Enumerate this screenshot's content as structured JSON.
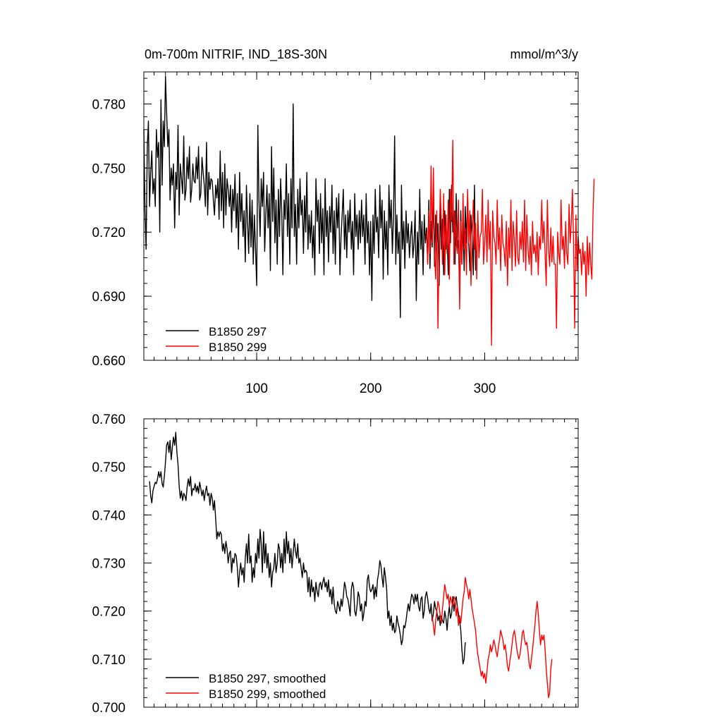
{
  "chart_data": [
    {
      "type": "line",
      "title": "0m-700m NITRIF, IND_18S-30N",
      "units": "mmol/m^3/y",
      "xlim": [
        1,
        382
      ],
      "ylim": [
        0.66,
        0.795
      ],
      "x_ticks": [
        100,
        200,
        300
      ],
      "y_ticks": [
        0.66,
        0.69,
        0.72,
        0.75,
        0.78
      ],
      "y_tick_labels": [
        "0.660",
        "0.690",
        "0.720",
        "0.750",
        "0.780"
      ],
      "x_tick_labels": [
        "100",
        "200",
        "300"
      ],
      "legend_position": "bottom-left",
      "series": [
        {
          "name": "B1850 297",
          "color": "#000000",
          "x_start": 1,
          "values": [
            0.768,
            0.73,
            0.712,
            0.76,
            0.772,
            0.732,
            0.748,
            0.758,
            0.738,
            0.745,
            0.732,
            0.768,
            0.755,
            0.762,
            0.72,
            0.782,
            0.742,
            0.772,
            0.76,
            0.793,
            0.776,
            0.76,
            0.768,
            0.735,
            0.75,
            0.742,
            0.752,
            0.722,
            0.748,
            0.74,
            0.77,
            0.728,
            0.752,
            0.745,
            0.738,
            0.765,
            0.735,
            0.74,
            0.755,
            0.745,
            0.76,
            0.734,
            0.74,
            0.752,
            0.744,
            0.743,
            0.755,
            0.745,
            0.76,
            0.735,
            0.738,
            0.755,
            0.748,
            0.742,
            0.732,
            0.762,
            0.728,
            0.748,
            0.74,
            0.745,
            0.744,
            0.735,
            0.728,
            0.742,
            0.736,
            0.745,
            0.726,
            0.758,
            0.73,
            0.748,
            0.722,
            0.752,
            0.728,
            0.745,
            0.74,
            0.732,
            0.742,
            0.72,
            0.74,
            0.73,
            0.747,
            0.722,
            0.738,
            0.712,
            0.748,
            0.725,
            0.738,
            0.718,
            0.73,
            0.706,
            0.742,
            0.725,
            0.71,
            0.738,
            0.713,
            0.735,
            0.705,
            0.728,
            0.712,
            0.695,
            0.77,
            0.735,
            0.718,
            0.745,
            0.732,
            0.748,
            0.711,
            0.728,
            0.742,
            0.722,
            0.738,
            0.702,
            0.76,
            0.725,
            0.75,
            0.715,
            0.735,
            0.705,
            0.74,
            0.718,
            0.745,
            0.73,
            0.7,
            0.735,
            0.726,
            0.752,
            0.718,
            0.738,
            0.705,
            0.745,
            0.722,
            0.78,
            0.718,
            0.733,
            0.705,
            0.74,
            0.722,
            0.745,
            0.728,
            0.735,
            0.71,
            0.737,
            0.72,
            0.748,
            0.712,
            0.728,
            0.715,
            0.73,
            0.708,
            0.723,
            0.7,
            0.745,
            0.725,
            0.735,
            0.71,
            0.738,
            0.715,
            0.731,
            0.7,
            0.745,
            0.718,
            0.73,
            0.706,
            0.732,
            0.72,
            0.742,
            0.71,
            0.73,
            0.705,
            0.736,
            0.722,
            0.738,
            0.7,
            0.718,
            0.728,
            0.74,
            0.712,
            0.728,
            0.708,
            0.73,
            0.72,
            0.735,
            0.712,
            0.725,
            0.7,
            0.738,
            0.718,
            0.728,
            0.712,
            0.73,
            0.715,
            0.735,
            0.718,
            0.728,
            0.705,
            0.738,
            0.715,
            0.725,
            0.7,
            0.725,
            0.688,
            0.728,
            0.71,
            0.74,
            0.72,
            0.727,
            0.708,
            0.742,
            0.722,
            0.735,
            0.698,
            0.73,
            0.712,
            0.725,
            0.7,
            0.742,
            0.722,
            0.735,
            0.71,
            0.728,
            0.765,
            0.705,
            0.728,
            0.71,
            0.72,
            0.68,
            0.742,
            0.712,
            0.725,
            0.703,
            0.73,
            0.715,
            0.724,
            0.708,
            0.718,
            0.725,
            0.708,
            0.715,
            0.73,
            0.688,
            0.72,
            0.705,
            0.74,
            0.712,
            0.725,
            0.7,
            0.728,
            0.715,
            0.722,
            0.706,
            0.735,
            0.703,
            0.725,
            0.713,
            0.738,
            0.704,
            0.728,
            0.712,
            0.724,
            0.695,
            0.735,
            0.712,
            0.726,
            0.7,
            0.73,
            0.712,
            0.72,
            0.7,
            0.74,
            0.715,
            0.742,
            0.72,
            0.73,
            0.705,
            0.738,
            0.712,
            0.716,
            0.69,
            0.73,
            0.705,
            0.725,
            0.702,
            0.732,
            0.715,
            0.738,
            0.715,
            0.702,
            0.728,
            0.718,
            0.7,
            0.742,
            0.702
          ]
        },
        {
          "name": "B1850 299",
          "color": "#ff0000",
          "x_start": 249,
          "values": [
            0.72,
            0.705,
            0.73,
            0.71,
            0.751,
            0.715,
            0.75,
            0.71,
            0.698,
            0.73,
            0.675,
            0.71,
            0.74,
            0.725,
            0.705,
            0.738,
            0.7,
            0.728,
            0.71,
            0.735,
            0.698,
            0.74,
            0.725,
            0.763,
            0.705,
            0.73,
            0.715,
            0.71,
            0.735,
            0.684,
            0.725,
            0.705,
            0.738,
            0.712,
            0.722,
            0.7,
            0.74,
            0.715,
            0.73,
            0.695,
            0.718,
            0.735,
            0.712,
            0.724,
            0.698,
            0.73,
            0.708,
            0.718,
            0.72,
            0.74,
            0.705,
            0.715,
            0.728,
            0.706,
            0.735,
            0.712,
            0.725,
            0.667,
            0.73,
            0.718,
            0.715,
            0.705,
            0.735,
            0.712,
            0.722,
            0.702,
            0.728,
            0.715,
            0.712,
            0.704,
            0.725,
            0.695,
            0.722,
            0.708,
            0.735,
            0.702,
            0.725,
            0.716,
            0.704,
            0.73,
            0.708,
            0.705,
            0.72,
            0.712,
            0.725,
            0.706,
            0.735,
            0.702,
            0.728,
            0.712,
            0.705,
            0.718,
            0.7,
            0.725,
            0.71,
            0.714,
            0.706,
            0.72,
            0.7,
            0.718,
            0.712,
            0.735,
            0.715,
            0.725,
            0.71,
            0.695,
            0.735,
            0.712,
            0.704,
            0.722,
            0.706,
            0.718,
            0.705,
            0.705,
            0.675,
            0.72,
            0.71,
            0.705,
            0.735,
            0.712,
            0.718,
            0.703,
            0.725,
            0.71,
            0.705,
            0.733,
            0.715,
            0.725,
            0.74,
            0.715,
            0.675,
            0.728,
            0.702,
            0.718,
            0.71,
            0.712,
            0.7,
            0.715,
            0.705,
            0.711,
            0.69,
            0.718,
            0.7,
            0.715,
            0.705,
            0.698,
            0.728,
            0.745
          ]
        }
      ]
    },
    {
      "type": "line",
      "title": "",
      "xlim": [
        1,
        382
      ],
      "ylim": [
        0.7,
        0.76
      ],
      "x_ticks": [
        100,
        200,
        300
      ],
      "y_ticks": [
        0.7,
        0.71,
        0.72,
        0.73,
        0.74,
        0.75,
        0.76
      ],
      "y_tick_labels": [
        "0.700",
        "0.710",
        "0.720",
        "0.730",
        "0.740",
        "0.750",
        "0.760"
      ],
      "legend_position": "bottom-left",
      "series": [
        {
          "name": "B1850 297, smoothed",
          "color": "#000000",
          "x_start": 6,
          "values": [
            0.747,
            0.744,
            0.7425,
            0.745,
            0.746,
            0.7468,
            0.7465,
            0.7475,
            0.749,
            0.7478,
            0.749,
            0.7465,
            0.7458,
            0.748,
            0.751,
            0.7545,
            0.7552,
            0.753,
            0.7555,
            0.7515,
            0.754,
            0.7562,
            0.7545,
            0.7572,
            0.753,
            0.7505,
            0.746,
            0.7435,
            0.745,
            0.743,
            0.7445,
            0.744,
            0.743,
            0.7458,
            0.7475,
            0.746,
            0.748,
            0.744,
            0.7455,
            0.7452,
            0.7465,
            0.7448,
            0.746,
            0.7445,
            0.7468,
            0.7455,
            0.744,
            0.7452,
            0.743,
            0.7448,
            0.746,
            0.744,
            0.7445,
            0.742,
            0.7445,
            0.7435,
            0.741,
            0.743,
            0.7392,
            0.735,
            0.7365,
            0.7355,
            0.7365,
            0.736,
            0.7325,
            0.734,
            0.732,
            0.7345,
            0.733,
            0.73,
            0.732,
            0.7325,
            0.728,
            0.731,
            0.73,
            0.732,
            0.7315,
            0.729,
            0.725,
            0.728,
            0.73,
            0.7275,
            0.729,
            0.726,
            0.731,
            0.734,
            0.73,
            0.736,
            0.73,
            0.7315,
            0.726,
            0.729,
            0.727,
            0.732,
            0.73,
            0.735,
            0.731,
            0.737,
            0.734,
            0.728,
            0.7365,
            0.73,
            0.734,
            0.729,
            0.732,
            0.727,
            0.73,
            0.725,
            0.728,
            0.729,
            0.732,
            0.728,
            0.73,
            0.734,
            0.733,
            0.729,
            0.732,
            0.728,
            0.735,
            0.73,
            0.7365,
            0.732,
            0.7345,
            0.73,
            0.733,
            0.729,
            0.732,
            0.735,
            0.7325,
            0.731,
            0.734,
            0.73,
            0.731,
            0.729,
            0.727,
            0.73,
            0.728,
            0.7285,
            0.728,
            0.724,
            0.727,
            0.723,
            0.7265,
            0.724,
            0.725,
            0.722,
            0.726,
            0.724,
            0.723,
            0.7255,
            0.726,
            0.7245,
            0.726,
            0.727,
            0.725,
            0.726,
            0.724,
            0.7265,
            0.723,
            0.7245,
            0.7215,
            0.725,
            0.7215,
            0.72,
            0.7195,
            0.722,
            0.721,
            0.72,
            0.7225,
            0.721,
            0.723,
            0.726,
            0.725,
            0.723,
            0.7225,
            0.721,
            0.719,
            0.7245,
            0.726,
            0.725,
            0.72,
            0.719,
            0.721,
            0.724,
            0.723,
            0.72,
            0.7215,
            0.718,
            0.7195,
            0.722,
            0.721,
            0.7265,
            0.7275,
            0.725,
            0.724,
            0.7245,
            0.7255,
            0.7225,
            0.725,
            0.723,
            0.7265,
            0.728,
            0.7305,
            0.7295,
            0.727,
            0.725,
            0.729,
            0.727,
            0.7245,
            0.7185,
            0.72,
            0.717,
            0.719,
            0.716,
            0.7175,
            0.7155,
            0.716,
            0.719,
            0.7175,
            0.7165,
            0.715,
            0.713,
            0.714,
            0.717,
            0.7165,
            0.718,
            0.72,
            0.7215,
            0.72,
            0.722,
            0.7235,
            0.723,
            0.7215,
            0.7235,
            0.722,
            0.7235,
            0.721,
            0.72,
            0.7225,
            0.723,
            0.7185,
            0.72,
            0.723,
            0.724,
            0.7225,
            0.7205,
            0.7195,
            0.7215,
            0.718,
            0.7195,
            0.722,
            0.7205,
            0.72,
            0.718,
            0.719,
            0.717,
            0.719,
            0.718,
            0.7175,
            0.72,
            0.7185,
            0.716,
            0.719,
            0.721,
            0.7185,
            0.7195,
            0.723,
            0.72,
            0.722,
            0.723,
            0.721,
            0.7195,
            0.718,
            0.716,
            0.712,
            0.709,
            0.71,
            0.7135
          ]
        },
        {
          "name": "B1850 299, smoothed",
          "color": "#ff0000",
          "x_start": 254,
          "values": [
            0.719,
            0.717,
            0.715,
            0.718,
            0.72,
            0.722,
            0.721,
            0.719,
            0.7175,
            0.7205,
            0.723,
            0.7255,
            0.724,
            0.7225,
            0.7235,
            0.721,
            0.723,
            0.722,
            0.721,
            0.723,
            0.7225,
            0.719,
            0.721,
            0.717,
            0.719,
            0.7175,
            0.72,
            0.7225,
            0.724,
            0.727,
            0.7255,
            0.7245,
            0.7225,
            0.7245,
            0.7225,
            0.7205,
            0.719,
            0.7175,
            0.716,
            0.713,
            0.711,
            0.7095,
            0.708,
            0.7065,
            0.7075,
            0.706,
            0.707,
            0.705,
            0.7075,
            0.71,
            0.711,
            0.713,
            0.7115,
            0.7125,
            0.714,
            0.713,
            0.7115,
            0.7105,
            0.7125,
            0.714,
            0.716,
            0.715,
            0.714,
            0.712,
            0.713,
            0.711,
            0.7085,
            0.7075,
            0.7095,
            0.711,
            0.713,
            0.715,
            0.716,
            0.7145,
            0.7125,
            0.711,
            0.71,
            0.711,
            0.713,
            0.7155,
            0.716,
            0.714,
            0.713,
            0.7135,
            0.7115,
            0.709,
            0.708,
            0.71,
            0.712,
            0.7145,
            0.717,
            0.72,
            0.722,
            0.7195,
            0.716,
            0.713,
            0.715,
            0.714,
            0.715,
            0.712,
            0.708,
            0.705,
            0.702,
            0.703,
            0.708,
            0.71
          ]
        }
      ]
    }
  ]
}
